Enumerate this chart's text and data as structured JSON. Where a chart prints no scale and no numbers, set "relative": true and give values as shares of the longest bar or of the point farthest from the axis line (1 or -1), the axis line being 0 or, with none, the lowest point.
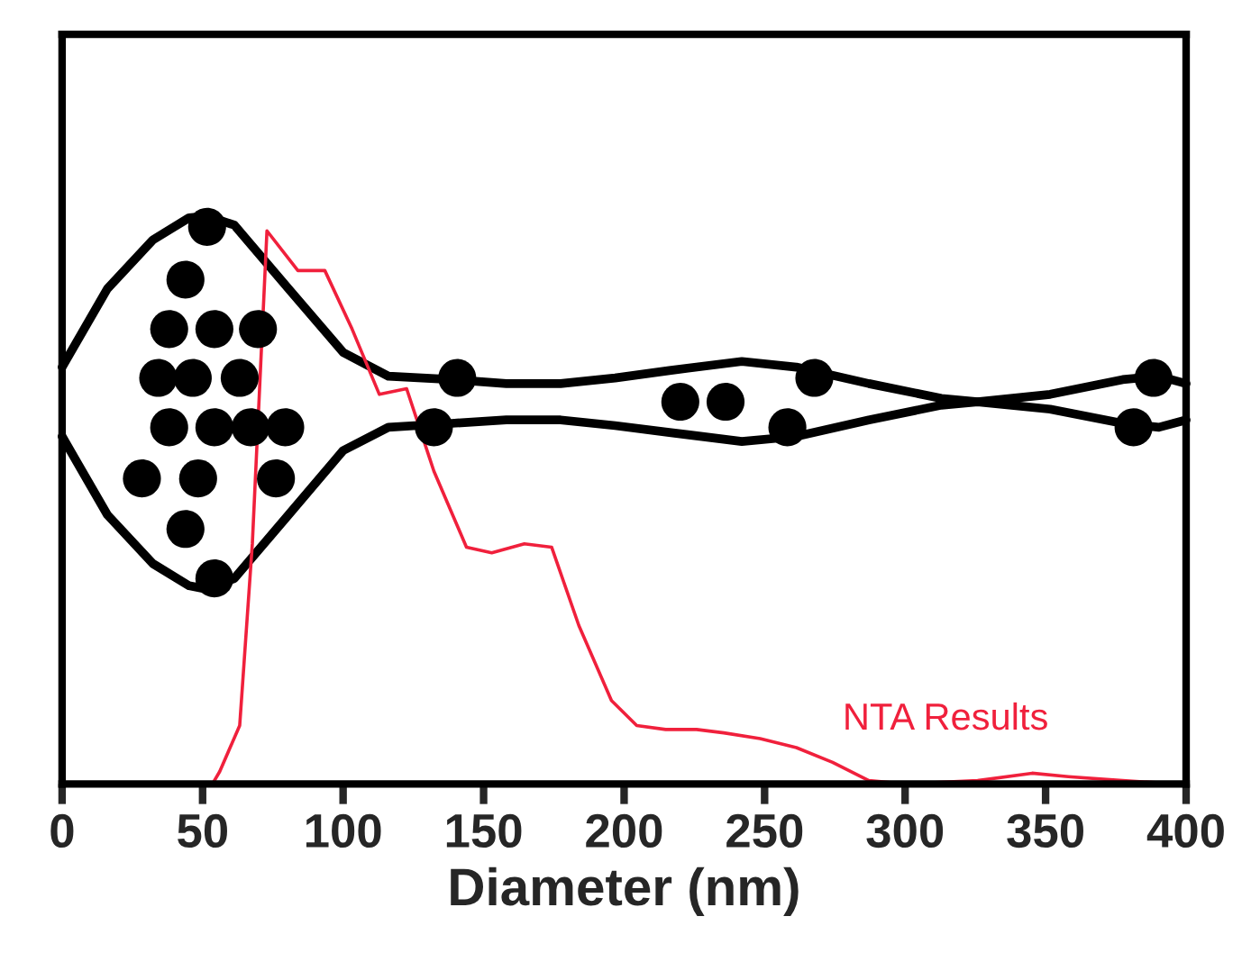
{
  "chart_data": {
    "type": "scatter",
    "relative": true,
    "xlabel": "Diameter (nm)",
    "xlim": [
      0,
      400
    ],
    "xticks": [
      0,
      50,
      100,
      150,
      200,
      250,
      300,
      350,
      400
    ],
    "grid": false,
    "legend": false,
    "series": [
      {
        "marker": "circle",
        "color": "#000000",
        "x": [
          51.6,
          43.9,
          38.1,
          54.2,
          69.7,
          34.2,
          46.5,
          63.2,
          38.1,
          54.2,
          67.1,
          79.4,
          28.4,
          48.4,
          76.1,
          43.9,
          54.2,
          140.6,
          132.3,
          220,
          236.1,
          267.7,
          258.1,
          388.4,
          381.3
        ],
        "values": [
          0.981,
          0.888,
          0.801,
          0.801,
          0.801,
          0.715,
          0.715,
          0.715,
          0.628,
          0.628,
          0.628,
          0.628,
          0.538,
          0.538,
          0.538,
          0.449,
          0.362,
          0.715,
          0.628,
          0.673,
          0.673,
          0.715,
          0.628,
          0.715,
          0.628
        ]
      },
      {
        "type": "line",
        "color": "#000000",
        "x": [
          0,
          16.1,
          32.3,
          45.2,
          51.6,
          61.3,
          80.6,
          100,
          116.1,
          138.7,
          158.1,
          177.4,
          196.8,
          216.1,
          241.9,
          261.3,
          287.1,
          312.9,
          325.8,
          351.6,
          377.4,
          390.3,
          400
        ],
        "values": [
          0.734,
          0.872,
          0.958,
          0.997,
          1.0,
          0.984,
          0.872,
          0.76,
          0.718,
          0.712,
          0.705,
          0.705,
          0.715,
          0.728,
          0.744,
          0.734,
          0.705,
          0.679,
          0.673,
          0.686,
          0.712,
          0.718,
          0.705
        ]
      },
      {
        "type": "line",
        "color": "#000000",
        "x": [
          0,
          16.1,
          32.3,
          45.2,
          51.6,
          61.3,
          80.6,
          100,
          116.1,
          138.7,
          158.1,
          177.4,
          196.8,
          216.1,
          241.9,
          261.3,
          287.1,
          312.9,
          325.8,
          351.6,
          377.4,
          390.3,
          400
        ],
        "values": [
          0.612,
          0.474,
          0.388,
          0.349,
          0.343,
          0.362,
          0.474,
          0.587,
          0.628,
          0.635,
          0.641,
          0.641,
          0.631,
          0.619,
          0.603,
          0.612,
          0.641,
          0.667,
          0.673,
          0.66,
          0.635,
          0.628,
          0.641
        ]
      },
      {
        "type": "line",
        "name": "NTA Results",
        "color": "#f0203c",
        "x": [
          0,
          53.5,
          56.1,
          63.2,
          67.7,
          72.9,
          83.9,
          93.5,
          103.2,
          112.9,
          122.6,
          132.3,
          143.9,
          152.9,
          164.5,
          174.2,
          183.9,
          195.5,
          204.5,
          214.8,
          225.8,
          235.5,
          248.4,
          261.3,
          274.2,
          287.1,
          300,
          325.8,
          345.2,
          358.1,
          377.4,
          396.8
        ],
        "values": [
          0,
          0,
          0.022,
          0.103,
          0.423,
          0.974,
          0.904,
          0.904,
          0.801,
          0.686,
          0.696,
          0.551,
          0.417,
          0.407,
          0.423,
          0.417,
          0.279,
          0.147,
          0.103,
          0.096,
          0.096,
          0.09,
          0.08,
          0.064,
          0.038,
          0.006,
          0,
          0.006,
          0.019,
          0.013,
          0.006,
          0
        ]
      }
    ]
  }
}
